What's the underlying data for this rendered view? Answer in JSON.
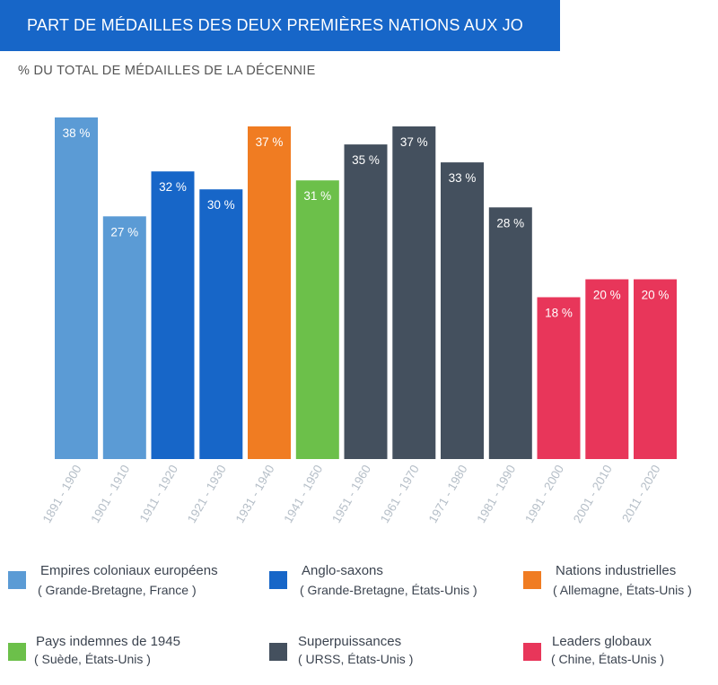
{
  "chart_data": {
    "type": "bar",
    "title": "PART DE MÉDAILLES DES DEUX PREMIÈRES NATIONS AUX JO",
    "subtitle": "% DU TOTAL DE MÉDAILLES DE LA DÉCENNIE",
    "categories": [
      "1891 - 1900",
      "1901 - 1910",
      "1911 - 1920",
      "1921 - 1930",
      "1931 - 1940",
      "1941 - 1950",
      "1951 - 1960",
      "1961 - 1970",
      "1971 - 1980",
      "1981 - 1990",
      "1991 - 2000",
      "2001 - 2010",
      "2011 - 2020"
    ],
    "values": [
      38,
      27,
      32,
      30,
      37,
      31,
      35,
      37,
      33,
      28,
      18,
      20,
      20
    ],
    "value_labels": [
      "38 %",
      "27 %",
      "32 %",
      "30 %",
      "37 %",
      "31 %",
      "35 %",
      "37 %",
      "33 %",
      "28 %",
      "18 %",
      "20 %",
      "20 %"
    ],
    "groups": [
      "empires",
      "empires",
      "anglo",
      "anglo",
      "industrial",
      "indemnes",
      "superpower",
      "superpower",
      "superpower",
      "superpower",
      "leaders",
      "leaders",
      "leaders"
    ],
    "ylim": [
      0,
      38
    ],
    "grid": false,
    "legend": [
      {
        "key": "empires",
        "name": "Empires coloniaux européens",
        "detail": "( Grande-Bretagne, France )",
        "color": "#5b9bd5"
      },
      {
        "key": "anglo",
        "name": "Anglo-saxons",
        "detail": "( Grande-Bretagne, États-Unis )",
        "color": "#1766c8"
      },
      {
        "key": "industrial",
        "name": "Nations industrielles",
        "detail": "( Allemagne, États-Unis )",
        "color": "#f07c22"
      },
      {
        "key": "indemnes",
        "name": "Pays indemnes de 1945",
        "detail": "( Suède, États-Unis )",
        "color": "#6cc04a"
      },
      {
        "key": "superpower",
        "name": "Superpuissances",
        "detail": "( URSS, États-Unis )",
        "color": "#44505e"
      },
      {
        "key": "leaders",
        "name": "Leaders globaux",
        "detail": "( Chine, États-Unis )",
        "color": "#e8365a"
      }
    ]
  }
}
